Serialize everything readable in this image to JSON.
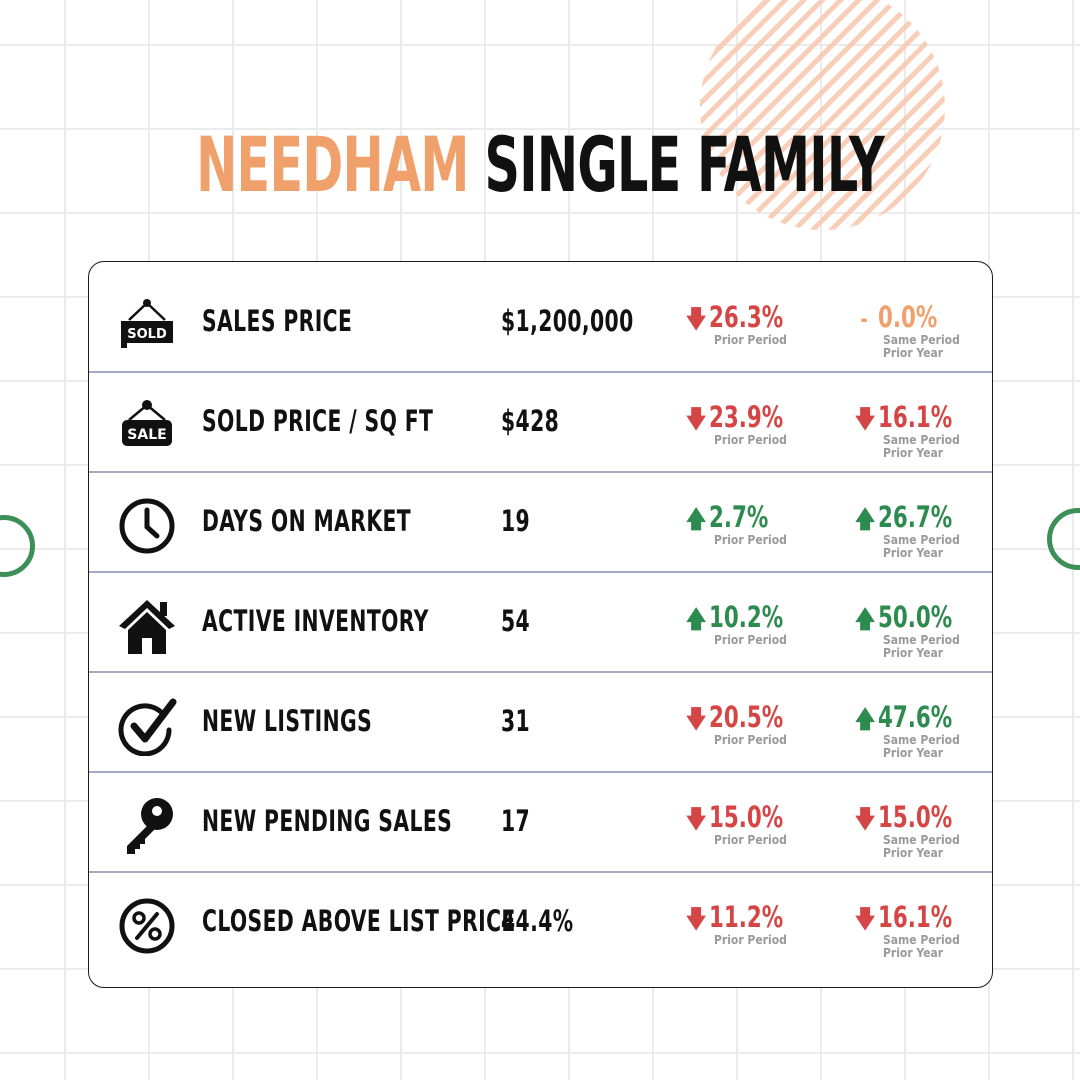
{
  "title": {
    "city": "NEEDHAM",
    "type": "SINGLE FAMILY"
  },
  "colors": {
    "accent": "#f0a06b",
    "up": "#2e8b4f",
    "down": "#d64545",
    "ring": "#3c8f57"
  },
  "rows": [
    {
      "icon": "sold-sign-icon",
      "icon_text": "SOLD",
      "label": "SALES PRICE",
      "value": "$1,200,000",
      "change1": {
        "dir": "down",
        "arrow": "🡇",
        "pct": "26.3%",
        "sub": "Prior Period"
      },
      "change2": {
        "dir": "flat",
        "arrow": "-",
        "pct": "0.0%",
        "sub1": "Same Period",
        "sub2": "Prior Year"
      }
    },
    {
      "icon": "sale-sign-icon",
      "icon_text": "SALE",
      "label": "SOLD PRICE / SQ FT",
      "value": "$428",
      "change1": {
        "dir": "down",
        "arrow": "🡇",
        "pct": "23.9%",
        "sub": "Prior Period"
      },
      "change2": {
        "dir": "down",
        "arrow": "🡇",
        "pct": "16.1%",
        "sub1": "Same Period",
        "sub2": "Prior Year"
      }
    },
    {
      "icon": "clock-icon",
      "label": "DAYS ON MARKET",
      "value": "19",
      "change1": {
        "dir": "up",
        "arrow": "🡅",
        "pct": "2.7%",
        "sub": "Prior Period"
      },
      "change2": {
        "dir": "up",
        "arrow": "🡅",
        "pct": "26.7%",
        "sub1": "Same Period",
        "sub2": "Prior Year"
      }
    },
    {
      "icon": "house-icon",
      "label": "ACTIVE INVENTORY",
      "value": "54",
      "change1": {
        "dir": "up",
        "arrow": "🡅",
        "pct": "10.2%",
        "sub": "Prior Period"
      },
      "change2": {
        "dir": "up",
        "arrow": "🡅",
        "pct": "50.0%",
        "sub1": "Same Period",
        "sub2": "Prior Year"
      }
    },
    {
      "icon": "checkmark-circle-icon",
      "label": "NEW LISTINGS",
      "value": "31",
      "change1": {
        "dir": "down",
        "arrow": "🡇",
        "pct": "20.5%",
        "sub": "Prior Period"
      },
      "change2": {
        "dir": "up",
        "arrow": "🡅",
        "pct": "47.6%",
        "sub1": "Same Period",
        "sub2": "Prior Year"
      }
    },
    {
      "icon": "key-icon",
      "label": "NEW PENDING SALES",
      "value": "17",
      "change1": {
        "dir": "down",
        "arrow": "🡇",
        "pct": "15.0%",
        "sub": "Prior Period"
      },
      "change2": {
        "dir": "down",
        "arrow": "🡇",
        "pct": "15.0%",
        "sub1": "Same Period",
        "sub2": "Prior Year"
      }
    },
    {
      "icon": "percent-circle-icon",
      "label": "CLOSED ABOVE LIST PRICE",
      "value": "44.4%",
      "change1": {
        "dir": "down",
        "arrow": "🡇",
        "pct": "11.2%",
        "sub": "Prior Period"
      },
      "change2": {
        "dir": "down",
        "arrow": "🡇",
        "pct": "16.1%",
        "sub1": "Same Period",
        "sub2": "Prior Year"
      }
    }
  ]
}
